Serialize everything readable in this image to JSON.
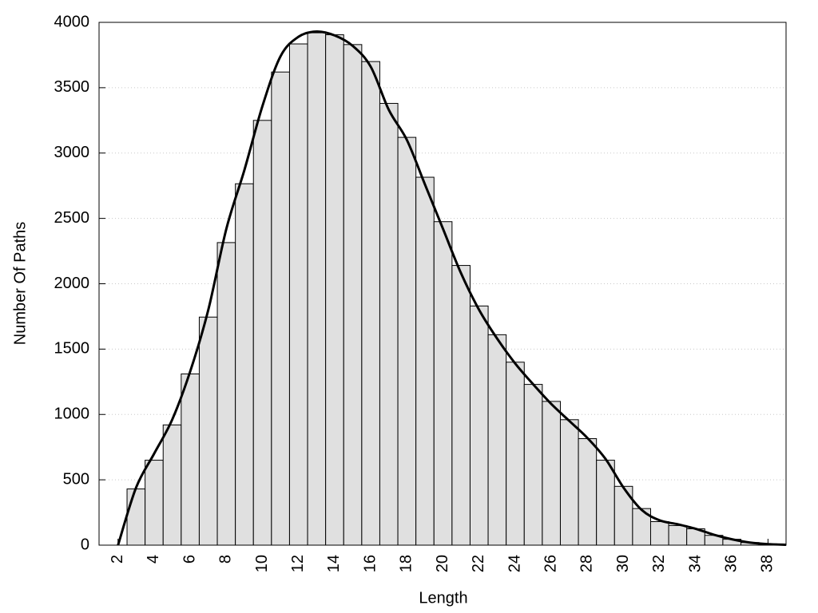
{
  "chart_data": {
    "type": "histogram",
    "x_label": "Length",
    "y_label": "Number Of Paths",
    "bins": [
      2.5,
      3.5,
      4.5,
      5.5,
      6.5,
      7.5,
      8.5,
      9.5,
      10.5,
      11.5,
      12.5,
      13.5,
      14.5,
      15.5,
      16.5,
      17.5,
      18.5,
      19.5,
      20.5,
      21.5,
      22.5,
      23.5,
      24.5,
      25.5,
      26.5,
      27.5,
      28.5,
      29.5,
      30.5,
      31.5,
      32.5,
      33.5,
      34.5,
      35.5,
      36.5,
      37.5,
      38.5
    ],
    "values": [
      430,
      650,
      920,
      1310,
      1745,
      2315,
      2765,
      3250,
      3620,
      3835,
      3920,
      3905,
      3830,
      3700,
      3380,
      3120,
      2815,
      2475,
      2140,
      1830,
      1610,
      1400,
      1230,
      1100,
      960,
      815,
      650,
      450,
      280,
      180,
      150,
      125,
      75,
      45,
      20,
      10
    ],
    "color": "#e0e0e0",
    "line": {
      "type": "line",
      "color": "#000000",
      "x": [
        2,
        3,
        4,
        5,
        6,
        7,
        8,
        9,
        10,
        11,
        12,
        13,
        14,
        15,
        16,
        17,
        18,
        19,
        20,
        21,
        22,
        23,
        24,
        25,
        26,
        27,
        28,
        29,
        30,
        31,
        32,
        33,
        34,
        35,
        36,
        37,
        38,
        39
      ],
      "values": [
        0,
        440,
        700,
        960,
        1330,
        1800,
        2420,
        2870,
        3360,
        3740,
        3890,
        3930,
        3900,
        3820,
        3660,
        3330,
        3100,
        2760,
        2420,
        2080,
        1800,
        1580,
        1390,
        1230,
        1080,
        950,
        820,
        660,
        440,
        270,
        190,
        160,
        125,
        80,
        45,
        20,
        8,
        3
      ]
    },
    "xlim": [
      0.95,
      39
    ],
    "ylim": [
      0,
      4000
    ],
    "xticks": [
      2,
      4,
      6,
      8,
      10,
      12,
      14,
      16,
      18,
      20,
      22,
      24,
      26,
      28,
      30,
      32,
      34,
      36,
      38
    ],
    "yticks": [
      0,
      500,
      1000,
      1500,
      2000,
      2500,
      3000,
      3500,
      4000
    ],
    "grid": true
  }
}
